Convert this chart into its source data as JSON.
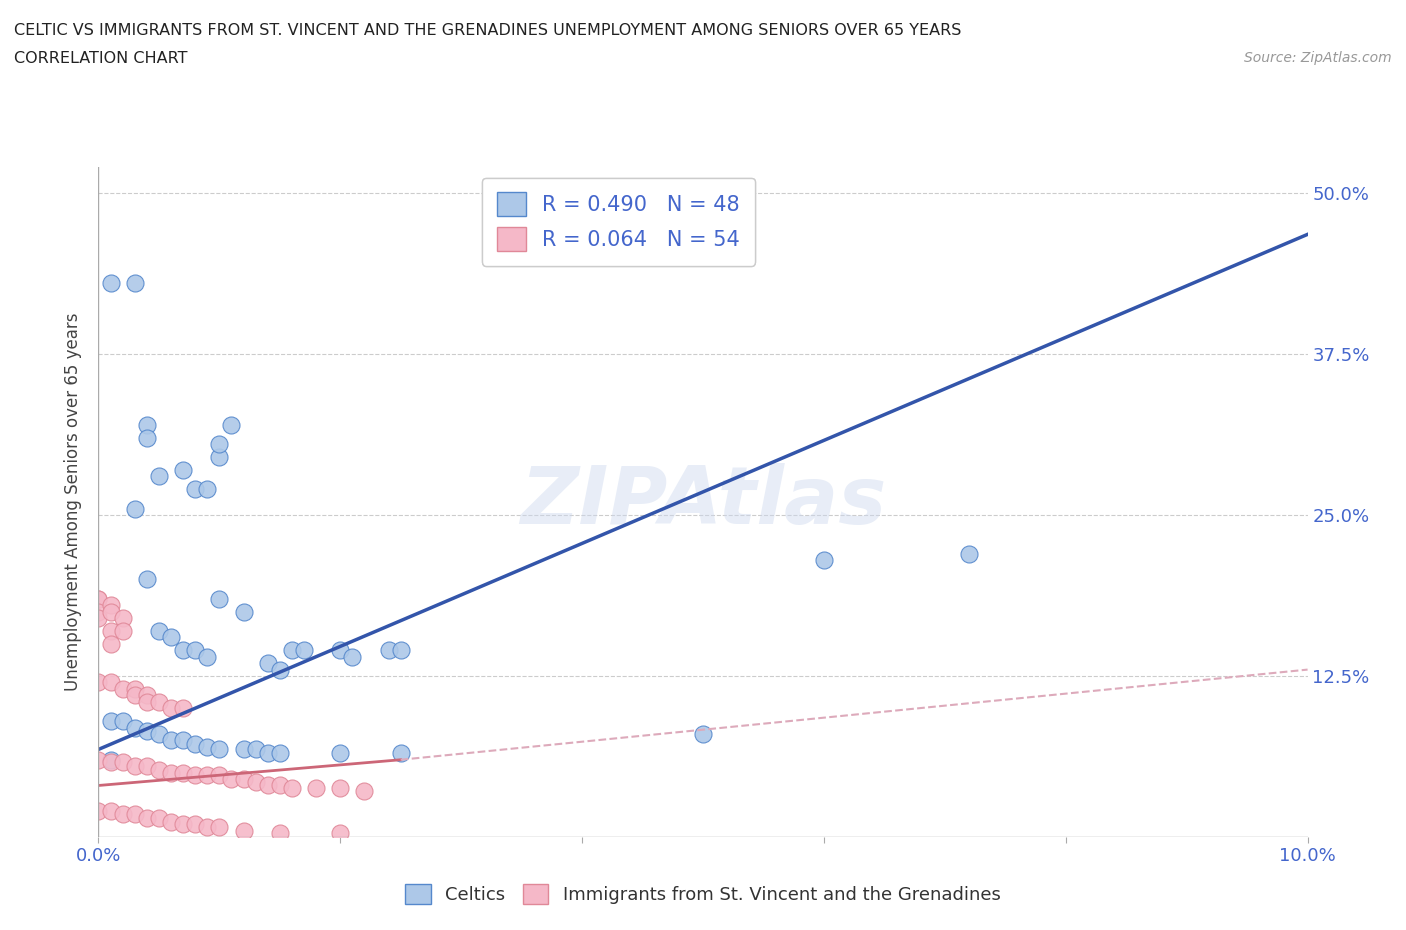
{
  "title_line1": "CELTIC VS IMMIGRANTS FROM ST. VINCENT AND THE GRENADINES UNEMPLOYMENT AMONG SENIORS OVER 65 YEARS",
  "title_line2": "CORRELATION CHART",
  "source_text": "Source: ZipAtlas.com",
  "ylabel": "Unemployment Among Seniors over 65 years",
  "watermark": "ZIPAtlas",
  "xlim": [
    0.0,
    0.1
  ],
  "ylim": [
    0.0,
    0.52
  ],
  "xticks": [
    0.0,
    0.02,
    0.04,
    0.06,
    0.08,
    0.1
  ],
  "xtick_labels": [
    "0.0%",
    "",
    "",
    "",
    "",
    "10.0%"
  ],
  "yticks": [
    0.0,
    0.125,
    0.25,
    0.375,
    0.5
  ],
  "ytick_labels": [
    "",
    "12.5%",
    "25.0%",
    "37.5%",
    "50.0%"
  ],
  "celtics_color": "#adc8e8",
  "celtics_edge_color": "#5588cc",
  "immigrants_color": "#f5b8c8",
  "immigrants_edge_color": "#e08898",
  "celtics_line_color": "#3355aa",
  "immigrants_line_color_solid": "#cc6677",
  "immigrants_line_color_dashed": "#ddaabb",
  "legend_text_color": "#4466cc",
  "title_color": "#222222",
  "grid_color": "#cccccc",
  "celtics_scatter": [
    [
      0.001,
      0.43
    ],
    [
      0.003,
      0.43
    ],
    [
      0.004,
      0.32
    ],
    [
      0.004,
      0.31
    ],
    [
      0.005,
      0.28
    ],
    [
      0.007,
      0.285
    ],
    [
      0.008,
      0.27
    ],
    [
      0.009,
      0.27
    ],
    [
      0.01,
      0.295
    ],
    [
      0.01,
      0.305
    ],
    [
      0.011,
      0.32
    ],
    [
      0.003,
      0.255
    ],
    [
      0.005,
      0.16
    ],
    [
      0.007,
      0.145
    ],
    [
      0.008,
      0.145
    ],
    [
      0.009,
      0.14
    ],
    [
      0.004,
      0.2
    ],
    [
      0.006,
      0.155
    ],
    [
      0.01,
      0.185
    ],
    [
      0.012,
      0.175
    ],
    [
      0.014,
      0.135
    ],
    [
      0.015,
      0.13
    ],
    [
      0.016,
      0.145
    ],
    [
      0.017,
      0.145
    ],
    [
      0.02,
      0.145
    ],
    [
      0.021,
      0.14
    ],
    [
      0.024,
      0.145
    ],
    [
      0.025,
      0.145
    ],
    [
      0.001,
      0.09
    ],
    [
      0.002,
      0.09
    ],
    [
      0.003,
      0.085
    ],
    [
      0.004,
      0.082
    ],
    [
      0.005,
      0.08
    ],
    [
      0.006,
      0.075
    ],
    [
      0.007,
      0.075
    ],
    [
      0.008,
      0.072
    ],
    [
      0.009,
      0.07
    ],
    [
      0.01,
      0.068
    ],
    [
      0.012,
      0.068
    ],
    [
      0.013,
      0.068
    ],
    [
      0.014,
      0.065
    ],
    [
      0.015,
      0.065
    ],
    [
      0.02,
      0.065
    ],
    [
      0.025,
      0.065
    ],
    [
      0.05,
      0.08
    ],
    [
      0.06,
      0.215
    ],
    [
      0.072,
      0.22
    ],
    [
      0.001,
      0.06
    ]
  ],
  "immigrants_scatter": [
    [
      0.0,
      0.185
    ],
    [
      0.0,
      0.185
    ],
    [
      0.0,
      0.175
    ],
    [
      0.0,
      0.17
    ],
    [
      0.001,
      0.18
    ],
    [
      0.001,
      0.175
    ],
    [
      0.001,
      0.16
    ],
    [
      0.001,
      0.15
    ],
    [
      0.002,
      0.17
    ],
    [
      0.002,
      0.16
    ],
    [
      0.0,
      0.12
    ],
    [
      0.001,
      0.12
    ],
    [
      0.002,
      0.115
    ],
    [
      0.003,
      0.115
    ],
    [
      0.003,
      0.11
    ],
    [
      0.004,
      0.11
    ],
    [
      0.004,
      0.105
    ],
    [
      0.005,
      0.105
    ],
    [
      0.006,
      0.1
    ],
    [
      0.007,
      0.1
    ],
    [
      0.0,
      0.06
    ],
    [
      0.001,
      0.058
    ],
    [
      0.002,
      0.058
    ],
    [
      0.003,
      0.055
    ],
    [
      0.004,
      0.055
    ],
    [
      0.005,
      0.052
    ],
    [
      0.006,
      0.05
    ],
    [
      0.007,
      0.05
    ],
    [
      0.008,
      0.048
    ],
    [
      0.009,
      0.048
    ],
    [
      0.01,
      0.048
    ],
    [
      0.011,
      0.045
    ],
    [
      0.012,
      0.045
    ],
    [
      0.013,
      0.043
    ],
    [
      0.014,
      0.04
    ],
    [
      0.015,
      0.04
    ],
    [
      0.016,
      0.038
    ],
    [
      0.018,
      0.038
    ],
    [
      0.02,
      0.038
    ],
    [
      0.022,
      0.036
    ],
    [
      0.0,
      0.02
    ],
    [
      0.001,
      0.02
    ],
    [
      0.002,
      0.018
    ],
    [
      0.003,
      0.018
    ],
    [
      0.004,
      0.015
    ],
    [
      0.005,
      0.015
    ],
    [
      0.006,
      0.012
    ],
    [
      0.007,
      0.01
    ],
    [
      0.008,
      0.01
    ],
    [
      0.009,
      0.008
    ],
    [
      0.01,
      0.008
    ],
    [
      0.012,
      0.005
    ],
    [
      0.015,
      0.003
    ],
    [
      0.02,
      0.003
    ]
  ],
  "celtics_trendline": [
    [
      0.0,
      0.068
    ],
    [
      0.1,
      0.468
    ]
  ],
  "immigrants_trendline_solid": [
    [
      0.0,
      0.04
    ],
    [
      0.025,
      0.06
    ]
  ],
  "immigrants_trendline_dashed": [
    [
      0.025,
      0.06
    ],
    [
      0.1,
      0.13
    ]
  ]
}
